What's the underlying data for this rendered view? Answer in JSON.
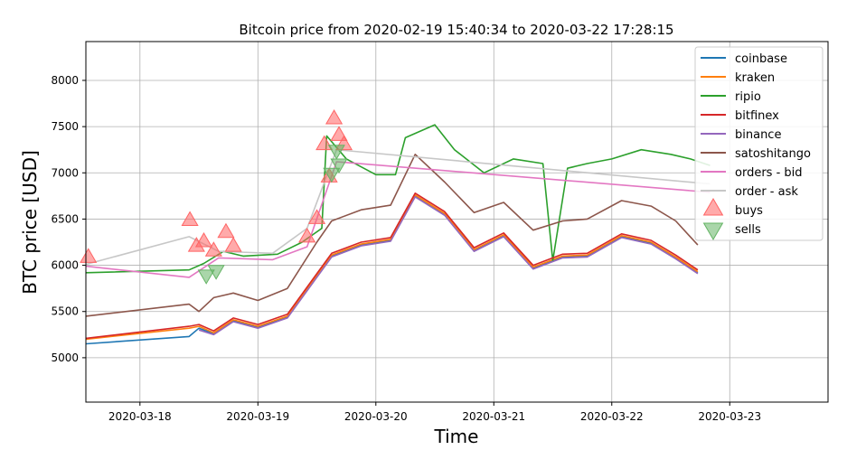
{
  "chart_data": {
    "type": "line",
    "title": "Bitcoin price from 2020-02-19 15:40:34 to 2020-03-22 17:28:15",
    "xlabel": "Time",
    "ylabel": "BTC price [USD]",
    "xlim": [
      "2020-03-17 13:00",
      "2020-03-23 20:00"
    ],
    "ylim": [
      4520,
      8420
    ],
    "grid": true,
    "legend_position": "top-right",
    "x_ticks": [
      "2020-03-18",
      "2020-03-19",
      "2020-03-20",
      "2020-03-21",
      "2020-03-22",
      "2020-03-23"
    ],
    "y_ticks": [
      5000,
      5500,
      6000,
      6500,
      7000,
      7500,
      8000
    ],
    "series": [
      {
        "name": "coinbase",
        "color": "#1f77b4",
        "x": [
          "2020-03-17 13:00",
          "2020-03-18 10:00",
          "2020-03-18 12:00",
          "2020-03-18 15:00",
          "2020-03-18 19:00",
          "2020-03-19 00:00",
          "2020-03-19 06:00",
          "2020-03-19 12:00",
          "2020-03-19 15:00",
          "2020-03-19 21:00",
          "2020-03-20 03:00",
          "2020-03-20 08:00",
          "2020-03-20 14:00",
          "2020-03-20 20:00",
          "2020-03-21 02:00",
          "2020-03-21 08:00",
          "2020-03-21 14:00",
          "2020-03-21 19:00",
          "2020-03-22 02:00",
          "2020-03-22 08:00",
          "2020-03-22 13:00",
          "2020-03-22 17:30"
        ],
        "values": [
          5150,
          5230,
          5320,
          5260,
          5400,
          5330,
          5440,
          5880,
          6100,
          6220,
          6270,
          6750,
          6550,
          6160,
          6320,
          5970,
          6090,
          6100,
          6310,
          6240,
          6080,
          5920
        ]
      },
      {
        "name": "kraken",
        "color": "#ff7f0e",
        "x": [
          "2020-03-17 13:00",
          "2020-03-18 10:00",
          "2020-03-18 12:00",
          "2020-03-18 15:00",
          "2020-03-18 19:00",
          "2020-03-19 00:00",
          "2020-03-19 06:00",
          "2020-03-19 12:00",
          "2020-03-19 15:00",
          "2020-03-19 21:00",
          "2020-03-20 03:00",
          "2020-03-20 08:00",
          "2020-03-20 14:00",
          "2020-03-20 20:00",
          "2020-03-21 02:00",
          "2020-03-21 08:00",
          "2020-03-21 14:00",
          "2020-03-21 19:00",
          "2020-03-22 02:00",
          "2020-03-22 08:00",
          "2020-03-22 13:00",
          "2020-03-22 17:30"
        ],
        "values": [
          5200,
          5320,
          5340,
          5270,
          5410,
          5340,
          5450,
          5890,
          6110,
          6230,
          6280,
          6760,
          6560,
          6170,
          6330,
          5980,
          6100,
          6110,
          6320,
          6250,
          6090,
          5930
        ]
      },
      {
        "name": "ripio",
        "color": "#2ca02c",
        "x": [
          "2020-03-17 13:00",
          "2020-03-18 10:00",
          "2020-03-18 13:00",
          "2020-03-18 17:00",
          "2020-03-18 21:00",
          "2020-03-19 04:00",
          "2020-03-19 09:00",
          "2020-03-19 13:00",
          "2020-03-19 14:00",
          "2020-03-19 18:00",
          "2020-03-20 00:00",
          "2020-03-20 04:00",
          "2020-03-20 06:00",
          "2020-03-20 12:00",
          "2020-03-20 16:00",
          "2020-03-20 22:00",
          "2020-03-21 04:00",
          "2020-03-21 10:00",
          "2020-03-21 12:00",
          "2020-03-21 15:00",
          "2020-03-21 19:00",
          "2020-03-22 00:00",
          "2020-03-22 06:00",
          "2020-03-22 12:00",
          "2020-03-22 16:00",
          "2020-03-22 20:00"
        ],
        "values": [
          5920,
          5950,
          6020,
          6150,
          6100,
          6120,
          6250,
          6400,
          7400,
          7150,
          6980,
          6980,
          7380,
          7520,
          7250,
          7000,
          7150,
          7100,
          6050,
          7050,
          7100,
          7150,
          7250,
          7200,
          7150,
          7080
        ]
      },
      {
        "name": "bitfinex",
        "color": "#d62728",
        "x": [
          "2020-03-17 13:00",
          "2020-03-18 10:00",
          "2020-03-18 12:00",
          "2020-03-18 15:00",
          "2020-03-18 19:00",
          "2020-03-19 00:00",
          "2020-03-19 06:00",
          "2020-03-19 12:00",
          "2020-03-19 15:00",
          "2020-03-19 21:00",
          "2020-03-20 03:00",
          "2020-03-20 08:00",
          "2020-03-20 14:00",
          "2020-03-20 20:00",
          "2020-03-21 02:00",
          "2020-03-21 08:00",
          "2020-03-21 14:00",
          "2020-03-21 19:00",
          "2020-03-22 02:00",
          "2020-03-22 08:00",
          "2020-03-22 13:00",
          "2020-03-22 17:30"
        ],
        "values": [
          5210,
          5340,
          5360,
          5290,
          5430,
          5360,
          5470,
          5910,
          6130,
          6250,
          6300,
          6780,
          6580,
          6190,
          6350,
          6000,
          6120,
          6130,
          6340,
          6270,
          6110,
          5950
        ]
      },
      {
        "name": "binance",
        "color": "#9467bd",
        "x": [
          "2020-03-18 12:00",
          "2020-03-18 15:00",
          "2020-03-18 19:00",
          "2020-03-19 00:00",
          "2020-03-19 06:00",
          "2020-03-19 12:00",
          "2020-03-19 15:00",
          "2020-03-19 21:00",
          "2020-03-20 03:00",
          "2020-03-20 08:00",
          "2020-03-20 14:00",
          "2020-03-20 20:00",
          "2020-03-21 02:00",
          "2020-03-21 08:00",
          "2020-03-21 14:00",
          "2020-03-21 19:00",
          "2020-03-22 02:00",
          "2020-03-22 08:00",
          "2020-03-22 13:00",
          "2020-03-22 17:30"
        ],
        "values": [
          5300,
          5250,
          5390,
          5320,
          5430,
          5870,
          6090,
          6210,
          6260,
          6740,
          6540,
          6150,
          6310,
          5960,
          6080,
          6090,
          6300,
          6230,
          6070,
          5910
        ]
      },
      {
        "name": "satoshitango",
        "color": "#8c564b",
        "x": [
          "2020-03-17 13:00",
          "2020-03-18 10:00",
          "2020-03-18 12:00",
          "2020-03-18 15:00",
          "2020-03-18 19:00",
          "2020-03-19 00:00",
          "2020-03-19 06:00",
          "2020-03-19 12:00",
          "2020-03-19 15:00",
          "2020-03-19 21:00",
          "2020-03-20 03:00",
          "2020-03-20 08:00",
          "2020-03-20 14:00",
          "2020-03-20 20:00",
          "2020-03-21 02:00",
          "2020-03-21 08:00",
          "2020-03-21 14:00",
          "2020-03-21 19:00",
          "2020-03-22 02:00",
          "2020-03-22 08:00",
          "2020-03-22 13:00",
          "2020-03-22 17:30"
        ],
        "values": [
          5450,
          5580,
          5500,
          5650,
          5700,
          5620,
          5750,
          6250,
          6480,
          6600,
          6650,
          7200,
          6900,
          6570,
          6680,
          6380,
          6480,
          6500,
          6700,
          6640,
          6480,
          6220
        ]
      },
      {
        "name": "orders - bid",
        "color": "#e377c2",
        "x": [
          "2020-03-17 13:00",
          "2020-03-18 10:00",
          "2020-03-18 16:00",
          "2020-03-19 03:00",
          "2020-03-19 10:00",
          "2020-03-19 16:00",
          "2020-03-22 20:00"
        ],
        "values": [
          5990,
          5870,
          6080,
          6060,
          6200,
          7120,
          6790
        ]
      },
      {
        "name": "order - ask",
        "color": "#c7c7c7",
        "x": [
          "2020-03-17 13:00",
          "2020-03-18 10:00",
          "2020-03-18 16:00",
          "2020-03-19 03:00",
          "2020-03-19 10:00",
          "2020-03-19 16:00",
          "2020-03-22 20:00"
        ],
        "values": [
          6010,
          6310,
          6150,
          6130,
          6400,
          7250,
          6880
        ]
      }
    ],
    "markers": [
      {
        "name": "buys",
        "color": "#ff6464",
        "shape": "triangle-up",
        "x": [
          "2020-03-17 13:30",
          "2020-03-18 10:10",
          "2020-03-18 11:30",
          "2020-03-18 13:00",
          "2020-03-18 15:00",
          "2020-03-18 17:30",
          "2020-03-18 19:00",
          "2020-03-19 10:00",
          "2020-03-19 12:00",
          "2020-03-19 13:30",
          "2020-03-19 14:30",
          "2020-03-19 15:30",
          "2020-03-19 16:30",
          "2020-03-19 17:30"
        ],
        "values": [
          6080,
          6480,
          6200,
          6250,
          6150,
          6350,
          6200,
          6300,
          6500,
          7300,
          6950,
          7580,
          7400,
          7300
        ]
      },
      {
        "name": "sells",
        "color": "#64b464",
        "shape": "triangle-down",
        "x": [
          "2020-03-18 13:30",
          "2020-03-18 15:30",
          "2020-03-19 15:00",
          "2020-03-19 16:00",
          "2020-03-19 16:30"
        ],
        "values": [
          5900,
          5950,
          7000,
          7250,
          7100
        ]
      }
    ]
  }
}
